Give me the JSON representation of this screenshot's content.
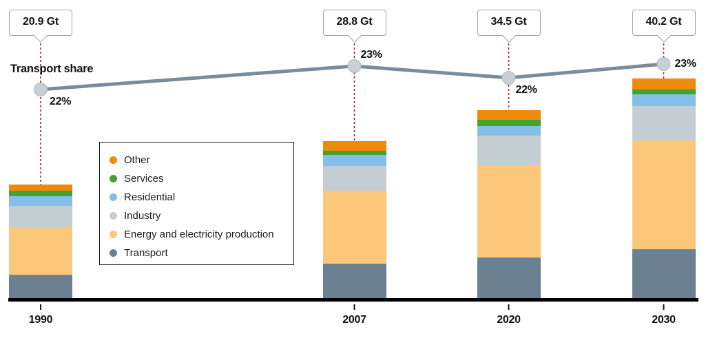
{
  "chart_data": {
    "type": "bar",
    "stacked": true,
    "unit": "Gt",
    "title": "",
    "xlabel": "",
    "ylabel": "",
    "grid": false,
    "categories": [
      "1990",
      "2007",
      "2020",
      "2030"
    ],
    "totals": [
      20.9,
      28.8,
      34.5,
      40.2
    ],
    "total_labels": [
      "20.9 Gt",
      "28.8 Gt",
      "34.5 Gt",
      "40.2 Gt"
    ],
    "series": [
      {
        "name": "Transport",
        "color": "#6B8090",
        "values": [
          4.4,
          6.4,
          7.6,
          9.1
        ]
      },
      {
        "name": "Energy and electricity production",
        "color": "#FBC87B",
        "values": [
          8.7,
          13.3,
          16.8,
          19.8
        ]
      },
      {
        "name": "Industry",
        "color": "#C3CDD2",
        "values": [
          3.9,
          4.6,
          5.4,
          6.3
        ]
      },
      {
        "name": "Residential",
        "color": "#85BEE6",
        "values": [
          1.8,
          2.0,
          1.8,
          2.1
        ]
      },
      {
        "name": "Services",
        "color": "#42A32E",
        "values": [
          1.0,
          0.7,
          1.1,
          1.0
        ]
      },
      {
        "name": "Other",
        "color": "#EE8A0E",
        "values": [
          1.1,
          1.8,
          1.8,
          1.9
        ]
      }
    ],
    "line": {
      "name": "Transport share",
      "values_pct": [
        22,
        23,
        22,
        23
      ],
      "labels": [
        "22%",
        "23%",
        "22%",
        "23%"
      ],
      "color": "#7A8C9A",
      "marker_fill": "#C9D0D5",
      "marker_stroke": "#AFB9C0"
    },
    "legend": {
      "items": [
        "Other",
        "Services",
        "Residential",
        "Industry",
        "Energy and electricity production",
        "Transport"
      ],
      "position": "middle-left"
    },
    "callout": {
      "border_color": "#9AA2A9",
      "connector_color": "#9A2030"
    },
    "axis": {
      "baseline_color": "#000000"
    }
  }
}
